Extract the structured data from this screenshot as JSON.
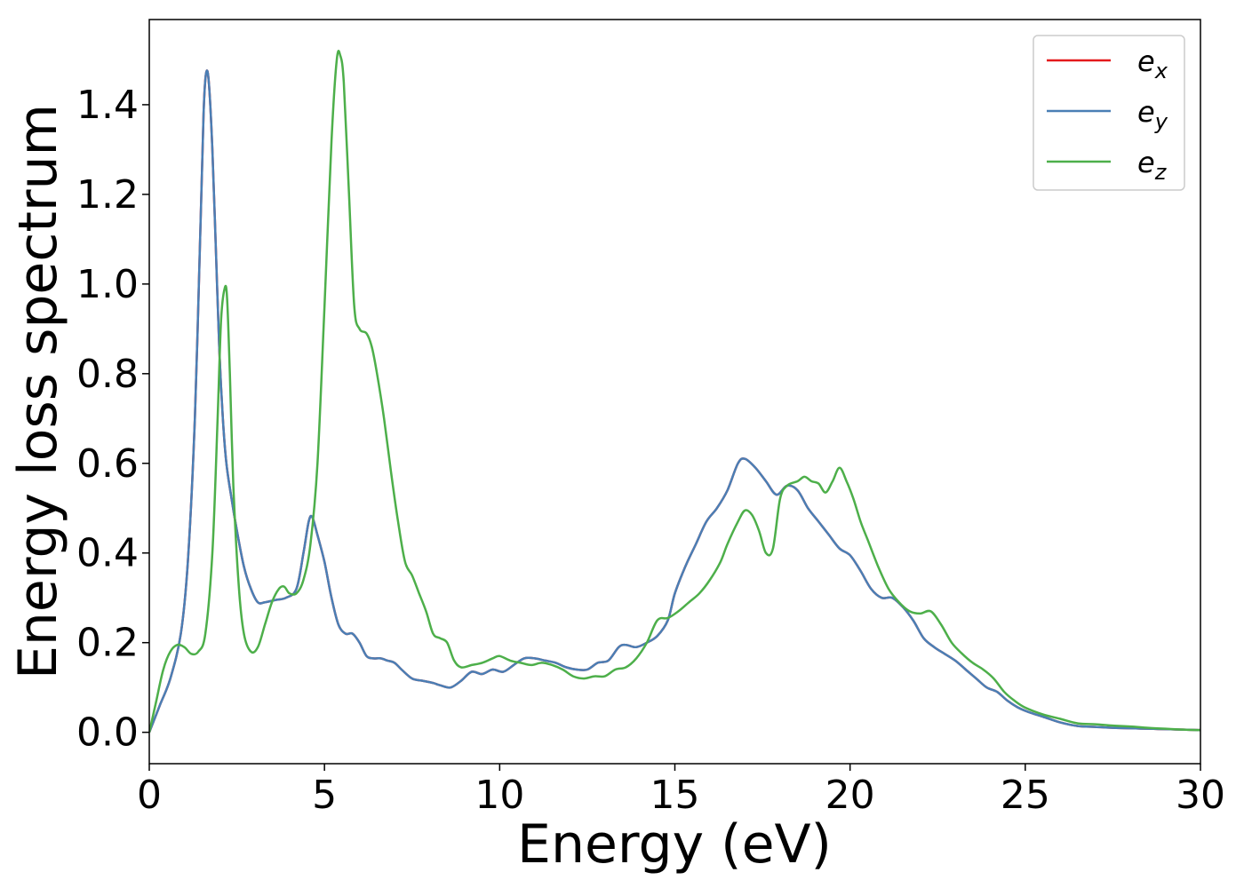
{
  "chart_data": {
    "type": "line",
    "title": "",
    "xlabel": "Energy (eV)",
    "ylabel": "Energy loss spectrum",
    "xlim": [
      0,
      30
    ],
    "ylim": [
      -0.07,
      1.59
    ],
    "xticks": [
      "0",
      "5",
      "10",
      "15",
      "20",
      "25",
      "30"
    ],
    "yticks": [
      "0.0",
      "0.2",
      "0.4",
      "0.6",
      "0.8",
      "1.0",
      "1.2",
      "1.4"
    ],
    "grid": false,
    "legend_position": "top-right",
    "series": [
      {
        "name": "e_x",
        "legend_base": "e",
        "legend_sub": "x",
        "color": "#e41a1c",
        "x": [
          0,
          0.3,
          0.6,
          0.9,
          1.1,
          1.3,
          1.45,
          1.55,
          1.62,
          1.7,
          1.8,
          1.9,
          2.0,
          2.1,
          2.2,
          2.35,
          2.5,
          2.7,
          2.9,
          3.1,
          3.3,
          3.6,
          3.9,
          4.2,
          4.4,
          4.55,
          4.65,
          4.8,
          5.0,
          5.2,
          5.4,
          5.6,
          5.8,
          6.0,
          6.2,
          6.4,
          6.6,
          6.8,
          7.0,
          7.2,
          7.5,
          7.8,
          8.1,
          8.3,
          8.6,
          8.9,
          9.2,
          9.5,
          9.8,
          10.1,
          10.4,
          10.7,
          11.0,
          11.3,
          11.6,
          11.9,
          12.2,
          12.5,
          12.8,
          13.1,
          13.4,
          13.6,
          13.9,
          14.2,
          14.5,
          14.8,
          15.0,
          15.3,
          15.6,
          15.9,
          16.2,
          16.5,
          16.8,
          17.0,
          17.3,
          17.6,
          17.9,
          18.2,
          18.5,
          18.8,
          19.1,
          19.4,
          19.7,
          20.0,
          20.3,
          20.6,
          20.9,
          21.2,
          21.5,
          21.8,
          22.1,
          22.4,
          22.7,
          23.0,
          23.3,
          23.6,
          23.9,
          24.2,
          24.5,
          24.8,
          25.1,
          25.5,
          26.0,
          26.5,
          27.0,
          27.5,
          28.0,
          28.5,
          29.0,
          29.5,
          30.0
        ],
        "y": [
          0,
          0.06,
          0.12,
          0.22,
          0.38,
          0.7,
          1.1,
          1.38,
          1.47,
          1.45,
          1.3,
          1.08,
          0.85,
          0.7,
          0.6,
          0.52,
          0.45,
          0.37,
          0.32,
          0.29,
          0.29,
          0.295,
          0.3,
          0.32,
          0.4,
          0.47,
          0.48,
          0.44,
          0.38,
          0.3,
          0.24,
          0.22,
          0.22,
          0.2,
          0.17,
          0.165,
          0.165,
          0.16,
          0.155,
          0.14,
          0.12,
          0.115,
          0.11,
          0.105,
          0.1,
          0.115,
          0.135,
          0.13,
          0.14,
          0.135,
          0.15,
          0.165,
          0.165,
          0.16,
          0.155,
          0.145,
          0.14,
          0.14,
          0.155,
          0.16,
          0.19,
          0.195,
          0.19,
          0.2,
          0.215,
          0.25,
          0.31,
          0.37,
          0.42,
          0.47,
          0.5,
          0.54,
          0.6,
          0.61,
          0.59,
          0.56,
          0.53,
          0.55,
          0.54,
          0.5,
          0.47,
          0.44,
          0.41,
          0.395,
          0.36,
          0.32,
          0.3,
          0.3,
          0.28,
          0.25,
          0.21,
          0.19,
          0.175,
          0.16,
          0.14,
          0.12,
          0.1,
          0.09,
          0.07,
          0.055,
          0.045,
          0.035,
          0.022,
          0.014,
          0.012,
          0.01,
          0.009,
          0.008,
          0.007,
          0.006,
          0.005
        ]
      },
      {
        "name": "e_y",
        "legend_base": "e",
        "legend_sub": "y",
        "color": "#4a7fb5",
        "x": [
          0,
          0.3,
          0.6,
          0.9,
          1.1,
          1.3,
          1.45,
          1.55,
          1.62,
          1.7,
          1.8,
          1.9,
          2.0,
          2.1,
          2.2,
          2.35,
          2.5,
          2.7,
          2.9,
          3.1,
          3.3,
          3.6,
          3.9,
          4.2,
          4.4,
          4.55,
          4.65,
          4.8,
          5.0,
          5.2,
          5.4,
          5.6,
          5.8,
          6.0,
          6.2,
          6.4,
          6.6,
          6.8,
          7.0,
          7.2,
          7.5,
          7.8,
          8.1,
          8.3,
          8.6,
          8.9,
          9.2,
          9.5,
          9.8,
          10.1,
          10.4,
          10.7,
          11.0,
          11.3,
          11.6,
          11.9,
          12.2,
          12.5,
          12.8,
          13.1,
          13.4,
          13.6,
          13.9,
          14.2,
          14.5,
          14.8,
          15.0,
          15.3,
          15.6,
          15.9,
          16.2,
          16.5,
          16.8,
          17.0,
          17.3,
          17.6,
          17.9,
          18.2,
          18.5,
          18.8,
          19.1,
          19.4,
          19.7,
          20.0,
          20.3,
          20.6,
          20.9,
          21.2,
          21.5,
          21.8,
          22.1,
          22.4,
          22.7,
          23.0,
          23.3,
          23.6,
          23.9,
          24.2,
          24.5,
          24.8,
          25.1,
          25.5,
          26.0,
          26.5,
          27.0,
          27.5,
          28.0,
          28.5,
          29.0,
          29.5,
          30.0
        ],
        "y": [
          0,
          0.06,
          0.12,
          0.22,
          0.38,
          0.7,
          1.1,
          1.38,
          1.47,
          1.45,
          1.3,
          1.08,
          0.85,
          0.7,
          0.6,
          0.52,
          0.45,
          0.37,
          0.32,
          0.29,
          0.29,
          0.295,
          0.3,
          0.32,
          0.4,
          0.47,
          0.48,
          0.44,
          0.38,
          0.3,
          0.24,
          0.22,
          0.22,
          0.2,
          0.17,
          0.165,
          0.165,
          0.16,
          0.155,
          0.14,
          0.12,
          0.115,
          0.11,
          0.105,
          0.1,
          0.115,
          0.135,
          0.13,
          0.14,
          0.135,
          0.15,
          0.165,
          0.165,
          0.16,
          0.155,
          0.145,
          0.14,
          0.14,
          0.155,
          0.16,
          0.19,
          0.195,
          0.19,
          0.2,
          0.215,
          0.25,
          0.31,
          0.37,
          0.42,
          0.47,
          0.5,
          0.54,
          0.6,
          0.61,
          0.59,
          0.56,
          0.53,
          0.55,
          0.54,
          0.5,
          0.47,
          0.44,
          0.41,
          0.395,
          0.36,
          0.32,
          0.3,
          0.3,
          0.28,
          0.25,
          0.21,
          0.19,
          0.175,
          0.16,
          0.14,
          0.12,
          0.1,
          0.09,
          0.07,
          0.055,
          0.045,
          0.035,
          0.022,
          0.014,
          0.012,
          0.01,
          0.009,
          0.008,
          0.007,
          0.006,
          0.005
        ]
      },
      {
        "name": "e_z",
        "legend_base": "e",
        "legend_sub": "z",
        "color": "#4daf4a",
        "x": [
          0,
          0.2,
          0.4,
          0.6,
          0.8,
          1.0,
          1.2,
          1.4,
          1.6,
          1.8,
          1.95,
          2.05,
          2.15,
          2.22,
          2.3,
          2.4,
          2.55,
          2.7,
          2.9,
          3.1,
          3.3,
          3.5,
          3.7,
          3.85,
          4.0,
          4.2,
          4.4,
          4.6,
          4.8,
          5.0,
          5.2,
          5.35,
          5.45,
          5.55,
          5.7,
          5.85,
          6.0,
          6.2,
          6.35,
          6.5,
          6.7,
          6.9,
          7.1,
          7.3,
          7.5,
          7.7,
          7.9,
          8.1,
          8.3,
          8.5,
          8.7,
          8.9,
          9.2,
          9.5,
          9.8,
          10.0,
          10.3,
          10.6,
          10.9,
          11.2,
          11.5,
          11.8,
          12.1,
          12.4,
          12.7,
          13.0,
          13.3,
          13.6,
          13.9,
          14.2,
          14.5,
          14.8,
          15.1,
          15.4,
          15.7,
          16.0,
          16.3,
          16.5,
          16.8,
          17.0,
          17.2,
          17.4,
          17.6,
          17.8,
          18.0,
          18.2,
          18.5,
          18.7,
          18.9,
          19.1,
          19.3,
          19.5,
          19.7,
          19.9,
          20.1,
          20.3,
          20.5,
          20.8,
          21.1,
          21.4,
          21.7,
          22.0,
          22.3,
          22.6,
          22.9,
          23.2,
          23.5,
          23.8,
          24.1,
          24.4,
          24.7,
          25.0,
          25.5,
          26.0,
          26.5,
          27.0,
          27.5,
          28.0,
          28.5,
          29.0,
          29.5,
          30.0
        ],
        "y": [
          0,
          0.07,
          0.14,
          0.18,
          0.195,
          0.19,
          0.175,
          0.18,
          0.22,
          0.4,
          0.7,
          0.92,
          0.99,
          0.97,
          0.8,
          0.55,
          0.33,
          0.22,
          0.18,
          0.19,
          0.24,
          0.29,
          0.32,
          0.325,
          0.31,
          0.31,
          0.34,
          0.42,
          0.6,
          0.95,
          1.32,
          1.5,
          1.51,
          1.45,
          1.2,
          0.95,
          0.9,
          0.89,
          0.86,
          0.8,
          0.7,
          0.58,
          0.47,
          0.38,
          0.35,
          0.31,
          0.27,
          0.22,
          0.21,
          0.2,
          0.16,
          0.145,
          0.15,
          0.155,
          0.165,
          0.17,
          0.16,
          0.155,
          0.15,
          0.155,
          0.15,
          0.14,
          0.125,
          0.12,
          0.125,
          0.125,
          0.14,
          0.145,
          0.165,
          0.2,
          0.25,
          0.255,
          0.27,
          0.29,
          0.31,
          0.34,
          0.38,
          0.42,
          0.47,
          0.495,
          0.485,
          0.45,
          0.4,
          0.41,
          0.52,
          0.55,
          0.56,
          0.57,
          0.56,
          0.555,
          0.535,
          0.56,
          0.59,
          0.56,
          0.52,
          0.47,
          0.43,
          0.37,
          0.32,
          0.29,
          0.27,
          0.265,
          0.27,
          0.24,
          0.2,
          0.175,
          0.155,
          0.14,
          0.12,
          0.09,
          0.07,
          0.055,
          0.04,
          0.03,
          0.02,
          0.018,
          0.015,
          0.013,
          0.01,
          0.008,
          0.006,
          0.005
        ]
      }
    ]
  }
}
